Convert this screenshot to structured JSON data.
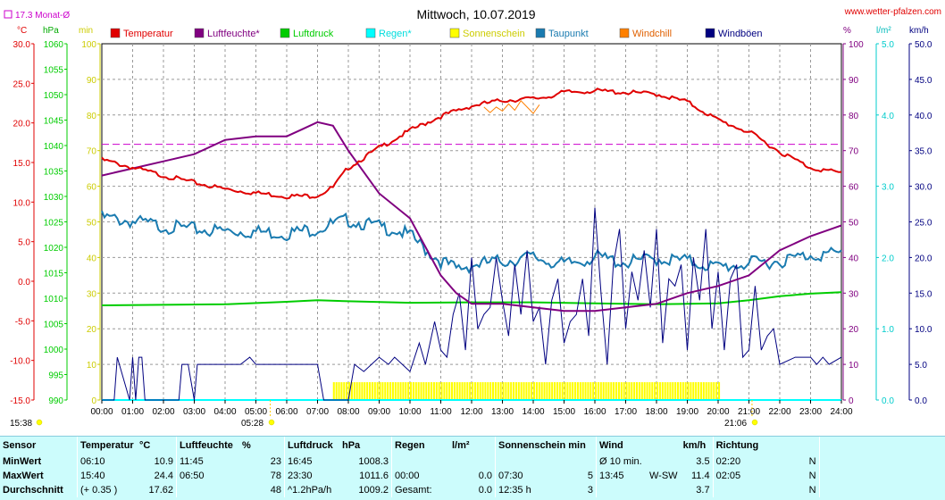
{
  "header": {
    "title": "Mittwoch, 10.07.2019",
    "website": "www.wetter-pfalzen.com",
    "monthly_avg": "17.3 Monat-Ø"
  },
  "units_left": [
    "°C",
    "hPa",
    "min"
  ],
  "units_right": [
    "%",
    "l/m²",
    "km/h"
  ],
  "legend": [
    {
      "label": "Temperatur",
      "color": "#e00000",
      "text_color": "#e00000"
    },
    {
      "label": "Luftfeuchte*",
      "color": "#800080",
      "text_color": "#800080"
    },
    {
      "label": "Luftdruck",
      "color": "#00cc00",
      "text_color": "#00cc00"
    },
    {
      "label": "Regen*",
      "color": "#00ffff",
      "text_color": "#00dddd"
    },
    {
      "label": "Sonnenschein",
      "color": "#ffff00",
      "text_color": "#cccc00"
    },
    {
      "label": "Taupunkt",
      "color": "#1a7bb0",
      "text_color": "#1a7bb0"
    },
    {
      "label": "Windchill",
      "color": "#ff8000",
      "text_color": "#e06000"
    },
    {
      "label": "Windböen",
      "color": "#000080",
      "text_color": "#000080"
    }
  ],
  "axis_ticks": {
    "temp": [
      "30.0",
      "25.0",
      "20.0",
      "15.0",
      "10.0",
      "5.0",
      "0.0",
      "-5.0",
      "-10.0",
      "-15.0"
    ],
    "pressure": [
      "1060",
      "1055",
      "1050",
      "1045",
      "1040",
      "1035",
      "1030",
      "1025",
      "1020",
      "1015",
      "1010",
      "1005",
      "1000",
      "995",
      "990"
    ],
    "sun_min": [
      "100",
      "90",
      "80",
      "70",
      "60",
      "50",
      "40",
      "30",
      "20",
      "10",
      "0"
    ],
    "humidity": [
      "100",
      "90",
      "80",
      "70",
      "60",
      "50",
      "40",
      "30",
      "20",
      "10",
      "0"
    ],
    "rain": [
      "5.0",
      "4.0",
      "3.0",
      "2.0",
      "1.0",
      "0.0"
    ],
    "wind": [
      "50.0",
      "45.0",
      "40.0",
      "35.0",
      "30.0",
      "25.0",
      "20.0",
      "15.0",
      "10.0",
      "5.0",
      "0.0"
    ],
    "time": [
      "00:00",
      "01:00",
      "02:00",
      "03:00",
      "04:00",
      "05:00",
      "06:00",
      "07:00",
      "08:00",
      "09:00",
      "10:00",
      "11:00",
      "12:00",
      "13:00",
      "14:00",
      "15:00",
      "16:00",
      "17:00",
      "18:00",
      "19:00",
      "20:00",
      "21:00",
      "22:00",
      "23:00",
      "24:00"
    ]
  },
  "sun_events": {
    "sunrise": "05:28",
    "sunset": "21:06",
    "daylight": "15:38"
  },
  "chart_data": {
    "type": "line",
    "title": "Mittwoch, 10.07.2019",
    "x_range": [
      "00:00",
      "24:00"
    ],
    "monthly_avg_temperature": 17.3,
    "grid": true,
    "series": [
      {
        "name": "Temperatur",
        "unit": "°C",
        "axis": "temp",
        "x": [
          0,
          1,
          2,
          3,
          4,
          5,
          6,
          6.5,
          7,
          7.5,
          8,
          9,
          10,
          11,
          12,
          13,
          14,
          14.5,
          15,
          16,
          17,
          18,
          19,
          20,
          21,
          22,
          23,
          24
        ],
        "values": [
          15.5,
          14.5,
          13.5,
          12.6,
          11.8,
          11.3,
          10.9,
          10.9,
          11.0,
          12.0,
          14.5,
          17.0,
          19.2,
          21.0,
          22.3,
          23.0,
          23.2,
          23.5,
          24.0,
          24.2,
          24.0,
          23.8,
          22.8,
          20.5,
          19.0,
          16.5,
          14.5,
          13.8
        ]
      },
      {
        "name": "Windchill",
        "unit": "°C",
        "axis": "temp",
        "x": [
          12.4,
          12.6,
          12.8,
          13.0,
          13.2,
          13.4,
          13.6,
          13.8,
          14.0,
          14.2
        ],
        "values": [
          22.0,
          21.3,
          22.0,
          21.5,
          22.4,
          21.6,
          22.8,
          22.0,
          21.2,
          22.3
        ]
      },
      {
        "name": "Luftfeuchte*",
        "unit": "%",
        "axis": "humidity",
        "x": [
          0,
          1,
          2,
          3,
          4,
          5,
          5.5,
          6,
          6.5,
          7,
          7.5,
          8,
          9,
          10,
          11,
          11.5,
          12,
          13,
          14,
          15,
          16,
          17,
          18,
          19,
          20,
          21,
          22,
          23,
          24
        ],
        "values": [
          63,
          65,
          67,
          69,
          73,
          74,
          74,
          74,
          76,
          78,
          77,
          70,
          58,
          51,
          35,
          30,
          27,
          27,
          26,
          25,
          25,
          26,
          27,
          30,
          32,
          35,
          42,
          46,
          49
        ]
      },
      {
        "name": "Luftdruck",
        "unit": "hPa",
        "axis": "pressure",
        "x": [
          0,
          2,
          4,
          6,
          7,
          8,
          10,
          12,
          14,
          16,
          18,
          20,
          21,
          22,
          23,
          24
        ],
        "values": [
          1008.6,
          1008.7,
          1008.8,
          1009.3,
          1009.6,
          1009.4,
          1009.1,
          1009.2,
          1009.2,
          1009.0,
          1008.8,
          1009.0,
          1009.6,
          1010.4,
          1010.9,
          1011.2
        ]
      },
      {
        "name": "Taupunkt",
        "unit": "°C",
        "axis": "temp",
        "x": [
          0,
          1,
          2,
          3,
          4,
          5,
          6,
          7,
          8,
          9,
          9.5,
          10,
          10.5,
          11,
          11.5,
          12,
          13,
          14,
          15,
          16,
          17,
          18,
          19,
          20,
          21,
          22,
          23,
          24
        ],
        "values": [
          8.5,
          8.0,
          7.4,
          7.0,
          6.8,
          6.7,
          6.5,
          7.1,
          8.2,
          7.3,
          7.0,
          6.2,
          4.5,
          3.0,
          2.0,
          2.5,
          3.0,
          3.5,
          2.5,
          3.5,
          2.8,
          3.3,
          3.0,
          2.2,
          2.7,
          3.0,
          3.8,
          3.9
        ]
      },
      {
        "name": "Windböen",
        "unit": "km/h",
        "axis": "wind",
        "x": [
          0,
          0.4,
          0.5,
          0.9,
          1.0,
          1.1,
          1.2,
          1.3,
          1.4,
          2.5,
          2.6,
          2.8,
          3.0,
          3.1,
          3.3,
          3.5,
          4.0,
          4.5,
          4.8,
          5.0,
          5.5,
          6.0,
          6.5,
          7.0,
          7.2,
          7.5,
          8.0,
          8.2,
          8.5,
          9.0,
          9.3,
          9.5,
          10.0,
          10.3,
          10.5,
          10.8,
          11.0,
          11.2,
          11.4,
          11.6,
          11.8,
          12.0,
          12.2,
          12.4,
          12.6,
          12.8,
          13.0,
          13.2,
          13.4,
          13.6,
          13.8,
          14.0,
          14.2,
          14.4,
          14.6,
          14.8,
          15.0,
          15.2,
          15.4,
          15.6,
          15.8,
          16.0,
          16.2,
          16.4,
          16.6,
          16.8,
          17.0,
          17.2,
          17.4,
          17.6,
          17.8,
          18.0,
          18.2,
          18.4,
          18.6,
          18.8,
          19.0,
          19.2,
          19.4,
          19.6,
          19.8,
          20.0,
          20.2,
          20.4,
          20.6,
          20.8,
          21.0,
          21.2,
          21.4,
          21.6,
          21.8,
          22.0,
          22.5,
          23.0,
          23.2,
          23.4,
          23.6,
          24.0
        ],
        "values": [
          0,
          0,
          6,
          0,
          6,
          0,
          6,
          6,
          0,
          0,
          5,
          5,
          0,
          5,
          5,
          5,
          5,
          5,
          6,
          5,
          5,
          5,
          5,
          5,
          0,
          0,
          0,
          5,
          4,
          6,
          5,
          6,
          4,
          8,
          5,
          11,
          7,
          6,
          12,
          15,
          7,
          20,
          10,
          12,
          13,
          20,
          14,
          9,
          19,
          12,
          21,
          11,
          13,
          5,
          14,
          17,
          8,
          11,
          12,
          17,
          9,
          27,
          15,
          5,
          19,
          24,
          10,
          18,
          14,
          21,
          13,
          24,
          8,
          17,
          16,
          19,
          7,
          20,
          14,
          24,
          10,
          18,
          7,
          17,
          19,
          6,
          7,
          16,
          7,
          9,
          10,
          5,
          6,
          6,
          5,
          6,
          5,
          6
        ]
      },
      {
        "name": "Sonnenschein",
        "unit": "min",
        "axis": "sun_min",
        "x": [
          7.5,
          8,
          9,
          10,
          11,
          12,
          13,
          14,
          15,
          16,
          17,
          18,
          19,
          20,
          20.1
        ],
        "values": [
          5,
          5,
          5,
          5,
          5,
          5,
          5,
          5,
          5,
          5,
          5,
          5,
          5,
          5,
          0
        ]
      },
      {
        "name": "Regen*",
        "unit": "l/m²",
        "axis": "rain",
        "x": [
          0,
          24
        ],
        "values": [
          0,
          0
        ]
      }
    ],
    "axes": {
      "temp": {
        "label": "°C",
        "ylim": [
          -15,
          30
        ]
      },
      "pressure": {
        "label": "hPa",
        "ylim": [
          990,
          1060
        ]
      },
      "sun_min": {
        "label": "min",
        "ylim": [
          0,
          100
        ]
      },
      "humidity": {
        "label": "%",
        "ylim": [
          0,
          100
        ]
      },
      "rain": {
        "label": "l/m²",
        "ylim": [
          0,
          5
        ]
      },
      "wind": {
        "label": "km/h",
        "ylim": [
          0,
          50
        ]
      }
    }
  },
  "stats": {
    "headers": {
      "sensor": "Sensor",
      "temp": "Temperatur",
      "temp_unit": "°C",
      "hum": "Luftfeuchte",
      "hum_unit": "%",
      "press": "Luftdruck",
      "press_unit": "hPa",
      "rain": "Regen",
      "rain_unit": "l/m²",
      "sun": "Sonnenschein min",
      "wind": "Wind",
      "wind_unit": "km/h",
      "dir": "Richtung"
    },
    "rows": [
      {
        "label": "MinWert",
        "t_time": "06:10",
        "t_val": "10.9",
        "h_time": "11:45",
        "h_val": "23",
        "p_time": "16:45",
        "p_val": "1008.3",
        "r_time": "",
        "r_val": "",
        "s_time": "",
        "s_val": "",
        "w_time": "Ø 10 min.",
        "w_dir": "",
        "w_val": "3.5",
        "d_time": "02:20",
        "d_val": "N"
      },
      {
        "label": "MaxWert",
        "t_time": "15:40",
        "t_val": "24.4",
        "h_time": "06:50",
        "h_val": "78",
        "p_time": "23:30",
        "p_val": "1011.6",
        "r_time": "00:00",
        "r_val": "0.0",
        "s_time": "07:30",
        "s_val": "5",
        "w_time": "13:45",
        "w_dir": "W-SW",
        "w_val": "11.4",
        "d_time": "02:05",
        "d_val": "N"
      },
      {
        "label": "Durchschnitt",
        "t_time": "(+ 0.35 )",
        "t_val": "17.62",
        "h_time": "",
        "h_val": "48",
        "p_time": "^1.2hPa/h",
        "p_val": "1009.2",
        "r_time": "Gesamt:",
        "r_val": "0.0",
        "s_time": "12:35 h",
        "s_val": "3",
        "w_time": "",
        "w_dir": "",
        "w_val": "3.7",
        "d_time": "",
        "d_val": "N"
      }
    ]
  }
}
